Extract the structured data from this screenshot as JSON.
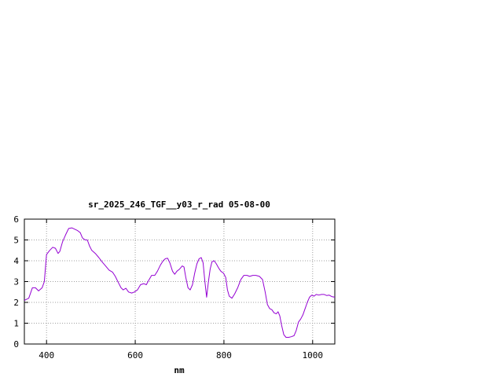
{
  "chart_data": {
    "type": "line",
    "title": "sr_2025_246_TGF__y03_r_rad 05-08-00",
    "xlabel": "nm",
    "ylabel": "",
    "xlim": [
      350,
      1050
    ],
    "ylim": [
      0,
      6
    ],
    "x_ticks": [
      400,
      600,
      800,
      1000
    ],
    "x_tick_labels": [
      "400",
      "600",
      "800",
      "1000"
    ],
    "y_ticks": [
      0,
      1,
      2,
      3,
      4,
      5,
      6
    ],
    "y_tick_labels": [
      "0",
      "1",
      "2",
      "3",
      "4",
      "5",
      "6"
    ],
    "grid": true,
    "grid_style": "dotted",
    "legend": "none",
    "series": [
      {
        "color": "#9400d3",
        "points": [
          [
            350,
            2.1
          ],
          [
            360,
            2.2
          ],
          [
            368,
            2.7
          ],
          [
            375,
            2.7
          ],
          [
            382,
            2.55
          ],
          [
            390,
            2.7
          ],
          [
            395,
            3.0
          ],
          [
            400,
            4.3
          ],
          [
            407,
            4.5
          ],
          [
            414,
            4.65
          ],
          [
            420,
            4.6
          ],
          [
            426,
            4.35
          ],
          [
            430,
            4.45
          ],
          [
            436,
            4.9
          ],
          [
            443,
            5.25
          ],
          [
            450,
            5.55
          ],
          [
            457,
            5.58
          ],
          [
            463,
            5.52
          ],
          [
            470,
            5.45
          ],
          [
            476,
            5.35
          ],
          [
            481,
            5.1
          ],
          [
            487,
            5.0
          ],
          [
            492,
            5.0
          ],
          [
            497,
            4.7
          ],
          [
            502,
            4.5
          ],
          [
            510,
            4.35
          ],
          [
            518,
            4.15
          ],
          [
            525,
            3.95
          ],
          [
            533,
            3.75
          ],
          [
            541,
            3.55
          ],
          [
            549,
            3.45
          ],
          [
            555,
            3.25
          ],
          [
            562,
            2.95
          ],
          [
            568,
            2.7
          ],
          [
            573,
            2.6
          ],
          [
            579,
            2.68
          ],
          [
            585,
            2.5
          ],
          [
            592,
            2.45
          ],
          [
            598,
            2.5
          ],
          [
            605,
            2.6
          ],
          [
            612,
            2.85
          ],
          [
            619,
            2.9
          ],
          [
            625,
            2.85
          ],
          [
            630,
            3.05
          ],
          [
            637,
            3.3
          ],
          [
            644,
            3.3
          ],
          [
            650,
            3.5
          ],
          [
            657,
            3.8
          ],
          [
            663,
            4.0
          ],
          [
            668,
            4.1
          ],
          [
            673,
            4.12
          ],
          [
            678,
            3.9
          ],
          [
            684,
            3.5
          ],
          [
            689,
            3.35
          ],
          [
            694,
            3.5
          ],
          [
            700,
            3.6
          ],
          [
            706,
            3.75
          ],
          [
            710,
            3.7
          ],
          [
            714,
            3.2
          ],
          [
            719,
            2.7
          ],
          [
            724,
            2.6
          ],
          [
            729,
            2.85
          ],
          [
            734,
            3.4
          ],
          [
            739,
            3.85
          ],
          [
            744,
            4.1
          ],
          [
            749,
            4.15
          ],
          [
            753,
            3.9
          ],
          [
            757,
            3.0
          ],
          [
            761,
            2.25
          ],
          [
            765,
            3.0
          ],
          [
            769,
            3.6
          ],
          [
            773,
            3.95
          ],
          [
            778,
            4.0
          ],
          [
            783,
            3.85
          ],
          [
            788,
            3.65
          ],
          [
            793,
            3.5
          ],
          [
            799,
            3.4
          ],
          [
            804,
            3.2
          ],
          [
            808,
            2.6
          ],
          [
            812,
            2.3
          ],
          [
            818,
            2.2
          ],
          [
            824,
            2.4
          ],
          [
            831,
            2.7
          ],
          [
            838,
            3.1
          ],
          [
            845,
            3.3
          ],
          [
            852,
            3.3
          ],
          [
            858,
            3.25
          ],
          [
            865,
            3.3
          ],
          [
            872,
            3.3
          ],
          [
            880,
            3.25
          ],
          [
            887,
            3.1
          ],
          [
            893,
            2.5
          ],
          [
            898,
            1.9
          ],
          [
            903,
            1.7
          ],
          [
            908,
            1.65
          ],
          [
            913,
            1.5
          ],
          [
            918,
            1.45
          ],
          [
            922,
            1.55
          ],
          [
            926,
            1.35
          ],
          [
            930,
            0.9
          ],
          [
            935,
            0.45
          ],
          [
            940,
            0.32
          ],
          [
            946,
            0.32
          ],
          [
            952,
            0.35
          ],
          [
            958,
            0.4
          ],
          [
            963,
            0.65
          ],
          [
            968,
            1.05
          ],
          [
            973,
            1.2
          ],
          [
            978,
            1.4
          ],
          [
            983,
            1.7
          ],
          [
            988,
            2.0
          ],
          [
            993,
            2.25
          ],
          [
            998,
            2.35
          ],
          [
            1003,
            2.3
          ],
          [
            1008,
            2.38
          ],
          [
            1014,
            2.35
          ],
          [
            1020,
            2.38
          ],
          [
            1026,
            2.38
          ],
          [
            1032,
            2.33
          ],
          [
            1037,
            2.35
          ],
          [
            1043,
            2.28
          ],
          [
            1050,
            2.25
          ]
        ]
      }
    ]
  }
}
